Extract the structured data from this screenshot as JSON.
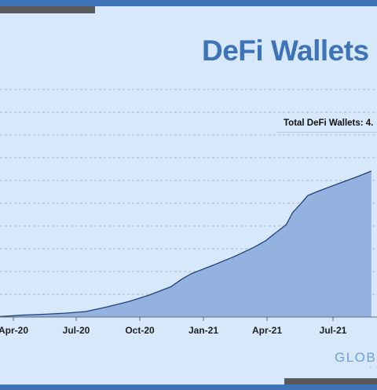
{
  "colors": {
    "background": "#d6e8fa",
    "accent": "#3f73b8",
    "area_fill": "#94b2e0",
    "line": "#22407a",
    "grid": "#a9b9ca",
    "gray_bar": "#595959"
  },
  "logo_text": "GLOB",
  "chart_data": {
    "type": "area",
    "title": "DeFi Wallets",
    "annotation": "Total DeFi Wallets: 4.",
    "x_tick_labels": [
      "Apr-20",
      "Jul-20",
      "Oct-20",
      "Jan-21",
      "Apr-21",
      "Jul-21"
    ],
    "grid": true,
    "legend": "none",
    "series": [
      {
        "x": [
          "2020-03-15",
          "2020-04-15",
          "2020-05-15",
          "2020-06-15",
          "2020-07-15",
          "2020-08-15",
          "2020-09-15",
          "2020-10-15",
          "2020-11-15",
          "2020-12-01",
          "2020-12-15",
          "2021-01-15",
          "2021-02-15",
          "2021-03-15",
          "2021-04-01",
          "2021-04-15",
          "2021-05-01",
          "2021-05-10",
          "2021-05-20",
          "2021-06-01",
          "2021-06-15",
          "2021-07-15",
          "2021-08-15",
          "2021-09-01"
        ],
        "y": [
          0.02,
          0.07,
          0.1,
          0.14,
          0.2,
          0.37,
          0.56,
          0.8,
          1.1,
          1.38,
          1.58,
          1.88,
          2.2,
          2.53,
          2.77,
          3.05,
          3.36,
          3.79,
          4.06,
          4.41,
          4.56,
          4.84,
          5.13,
          5.3
        ]
      }
    ]
  }
}
